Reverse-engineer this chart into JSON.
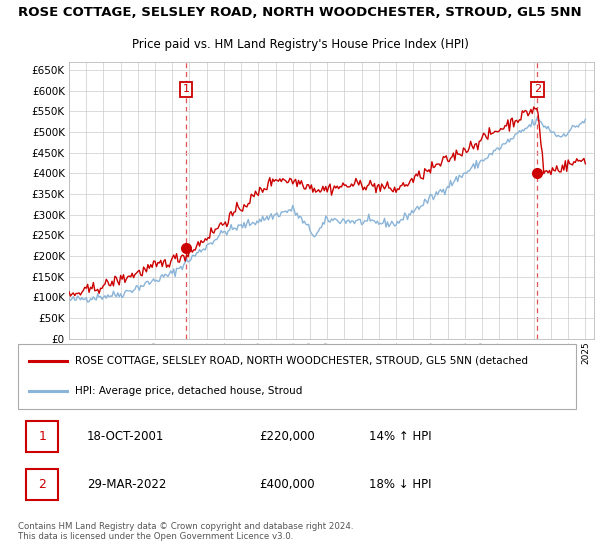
{
  "title": "ROSE COTTAGE, SELSLEY ROAD, NORTH WOODCHESTER, STROUD, GL5 5NN",
  "subtitle": "Price paid vs. HM Land Registry's House Price Index (HPI)",
  "background_color": "#ffffff",
  "plot_background": "#ffffff",
  "grid_color": "#cccccc",
  "ylim": [
    0,
    670000
  ],
  "yticks": [
    0,
    50000,
    100000,
    150000,
    200000,
    250000,
    300000,
    350000,
    400000,
    450000,
    500000,
    550000,
    600000,
    650000
  ],
  "xlim_start": 1995.0,
  "xlim_end": 2025.5,
  "sale1_year": 2001.8,
  "sale1_price": 220000,
  "sale1_label": "1",
  "sale1_date": "18-OCT-2001",
  "sale1_hpi_pct": "14% ↑ HPI",
  "sale2_year": 2022.2,
  "sale2_price": 400000,
  "sale2_label": "2",
  "sale2_date": "29-MAR-2022",
  "sale2_hpi_pct": "18% ↓ HPI",
  "legend_label1": "ROSE COTTAGE, SELSLEY ROAD, NORTH WOODCHESTER, STROUD, GL5 5NN (detached",
  "legend_label2": "HPI: Average price, detached house, Stroud",
  "line1_color": "#cc0000",
  "line2_color": "#8ab4d8",
  "vline_color": "#e05555",
  "marker_color1": "#cc0000",
  "marker_color2": "#cc0000",
  "annotation_box_color": "#cc0000",
  "footnote": "Contains HM Land Registry data © Crown copyright and database right 2024.\nThis data is licensed under the Open Government Licence v3.0."
}
